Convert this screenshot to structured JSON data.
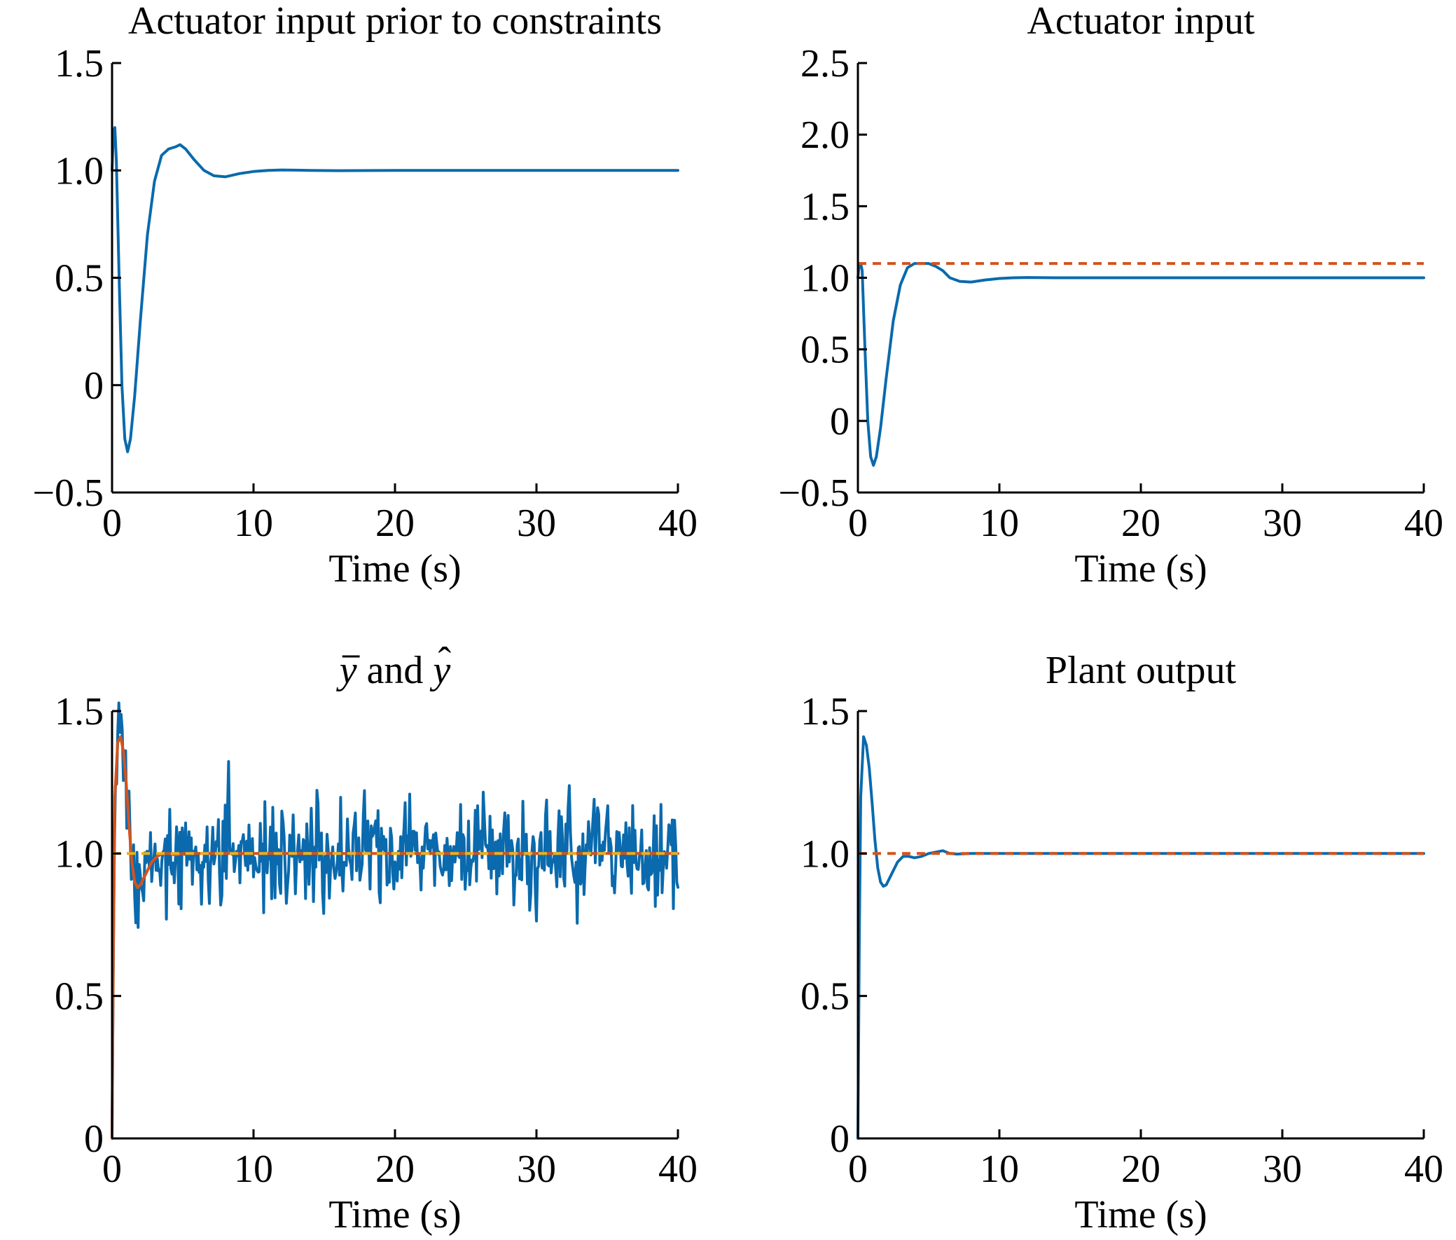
{
  "colors": {
    "blue": "#0a6aad",
    "orange": "#d4531c",
    "yellow": "#e8b020"
  },
  "chart_data": [
    {
      "type": "line",
      "title": "Actuator input prior to constraints",
      "xlabel": "Time (s)",
      "ylabel": "",
      "xlim": [
        0,
        40
      ],
      "ylim": [
        -0.5,
        1.5
      ],
      "xticks": [
        0,
        10,
        20,
        30,
        40
      ],
      "xtick_labels": [
        "0",
        "10",
        "20",
        "30",
        "40"
      ],
      "yticks": [
        -0.5,
        0,
        0.5,
        1.0,
        1.5
      ],
      "ytick_labels": [
        "−0.5",
        "0",
        "0.5",
        "1.0",
        "1.5"
      ],
      "series": [
        {
          "style": "solid",
          "color": "blue",
          "x": [
            0,
            0.1,
            0.2,
            0.3,
            0.5,
            0.7,
            0.9,
            1.1,
            1.3,
            1.6,
            2.0,
            2.5,
            3.0,
            3.5,
            4.0,
            4.5,
            4.8,
            5.2,
            5.8,
            6.5,
            7.2,
            8.0,
            9.0,
            10.0,
            11.0,
            12.0,
            13.0,
            14.0,
            16.0,
            20.0,
            30.0,
            40.0
          ],
          "y": [
            1.0,
            1.18,
            1.2,
            1.05,
            0.5,
            0.0,
            -0.25,
            -0.31,
            -0.25,
            -0.05,
            0.3,
            0.7,
            0.95,
            1.07,
            1.1,
            1.11,
            1.12,
            1.1,
            1.05,
            1.0,
            0.975,
            0.97,
            0.985,
            0.995,
            1.0,
            1.002,
            1.001,
            1.0,
            0.999,
            1.0,
            1.0,
            1.0
          ]
        }
      ]
    },
    {
      "type": "line",
      "title": "Actuator input",
      "xlabel": "Time (s)",
      "ylabel": "",
      "xlim": [
        0,
        40
      ],
      "ylim": [
        -0.5,
        2.5
      ],
      "xticks": [
        0,
        10,
        20,
        30,
        40
      ],
      "xtick_labels": [
        "0",
        "10",
        "20",
        "30",
        "40"
      ],
      "yticks": [
        -0.5,
        0,
        0.5,
        1.0,
        1.5,
        2.0,
        2.5
      ],
      "ytick_labels": [
        "−0.5",
        "0",
        "0.5",
        "1.0",
        "1.5",
        "2.0",
        "2.5"
      ],
      "series": [
        {
          "style": "solid",
          "color": "blue",
          "x": [
            0,
            0.1,
            0.2,
            0.3,
            0.5,
            0.7,
            0.9,
            1.1,
            1.3,
            1.6,
            2.0,
            2.5,
            3.0,
            3.5,
            4.0,
            4.5,
            5.0,
            5.5,
            6.0,
            6.5,
            7.2,
            8.0,
            9.0,
            10.0,
            11.0,
            12.0,
            14.0,
            20.0,
            30.0,
            40.0
          ],
          "y": [
            1.0,
            1.1,
            1.1,
            1.05,
            0.5,
            0.0,
            -0.25,
            -0.31,
            -0.25,
            -0.05,
            0.3,
            0.7,
            0.95,
            1.07,
            1.1,
            1.1,
            1.1,
            1.08,
            1.05,
            1.0,
            0.975,
            0.97,
            0.985,
            0.995,
            1.0,
            1.002,
            1.0,
            1.0,
            1.0,
            1.0
          ]
        },
        {
          "style": "dashed",
          "color": "orange",
          "x": [
            0,
            40
          ],
          "y": [
            1.1,
            1.1
          ]
        }
      ]
    },
    {
      "type": "line",
      "title": "y and y",
      "xlabel": "Time (s)",
      "ylabel": "",
      "xlim": [
        0,
        40
      ],
      "ylim": [
        0,
        1.5
      ],
      "xticks": [
        0,
        10,
        20,
        30,
        40
      ],
      "xtick_labels": [
        "0",
        "10",
        "20",
        "30",
        "40"
      ],
      "yticks": [
        0,
        0.5,
        1.0,
        1.5
      ],
      "ytick_labels": [
        "0",
        "0.5",
        "1.0",
        "1.5"
      ],
      "series": [
        {
          "style": "noise",
          "color": "blue",
          "x": [
            0,
            0.1,
            0.2,
            0.4,
            0.6,
            0.8,
            1.0,
            1.2,
            1.4,
            1.6,
            1.8,
            2.0,
            2.4,
            2.8,
            3.2,
            3.6,
            4.0,
            4.5,
            5.0,
            6.0,
            8.0,
            40.0
          ],
          "y": [
            0.0,
            0.7,
            1.2,
            1.39,
            1.41,
            1.36,
            1.25,
            1.1,
            0.97,
            0.9,
            0.88,
            0.89,
            0.93,
            0.97,
            0.99,
            1.0,
            1.0,
            0.995,
            1.0,
            1.0,
            1.0,
            1.0
          ],
          "noise_std": 0.09,
          "noise_dt": 0.08,
          "noise_start": 0.3
        },
        {
          "style": "solid",
          "color": "orange",
          "x": [
            0,
            0.1,
            0.2,
            0.4,
            0.6,
            0.8,
            1.0,
            1.2,
            1.4,
            1.6,
            1.8,
            2.0,
            2.4,
            2.8,
            3.2,
            3.6,
            4.0,
            4.5,
            5.0,
            6.0,
            8.0,
            40.0
          ],
          "y": [
            0.0,
            0.7,
            1.2,
            1.39,
            1.41,
            1.36,
            1.25,
            1.1,
            0.97,
            0.9,
            0.88,
            0.89,
            0.93,
            0.97,
            0.99,
            1.0,
            1.0,
            0.995,
            1.0,
            1.0,
            1.0,
            1.0
          ]
        },
        {
          "style": "dashed",
          "color": "yellow",
          "x": [
            0,
            40
          ],
          "y": [
            1.0,
            1.0
          ]
        }
      ]
    },
    {
      "type": "line",
      "title": "Plant output",
      "xlabel": "Time (s)",
      "ylabel": "",
      "xlim": [
        0,
        40
      ],
      "ylim": [
        0,
        1.5
      ],
      "xticks": [
        0,
        10,
        20,
        30,
        40
      ],
      "xtick_labels": [
        "0",
        "10",
        "20",
        "30",
        "40"
      ],
      "yticks": [
        0,
        0.5,
        1.0,
        1.5
      ],
      "ytick_labels": [
        "0",
        "0.5",
        "1.0",
        "1.5"
      ],
      "series": [
        {
          "style": "solid",
          "color": "blue",
          "x": [
            0,
            0.1,
            0.2,
            0.4,
            0.6,
            0.8,
            1.0,
            1.2,
            1.4,
            1.6,
            1.8,
            2.0,
            2.4,
            2.8,
            3.2,
            3.6,
            4.0,
            4.5,
            5.0,
            5.5,
            6.0,
            6.5,
            7.0,
            8.0,
            10.0,
            20.0,
            40.0
          ],
          "y": [
            0.0,
            0.7,
            1.2,
            1.41,
            1.38,
            1.3,
            1.18,
            1.05,
            0.95,
            0.9,
            0.885,
            0.89,
            0.93,
            0.97,
            0.99,
            0.99,
            0.985,
            0.99,
            1.0,
            1.005,
            1.01,
            1.0,
            0.998,
            1.0,
            1.0,
            1.0,
            1.0
          ]
        },
        {
          "style": "dashed",
          "color": "orange",
          "x": [
            0,
            40
          ],
          "y": [
            1.0,
            1.0
          ]
        }
      ]
    }
  ]
}
